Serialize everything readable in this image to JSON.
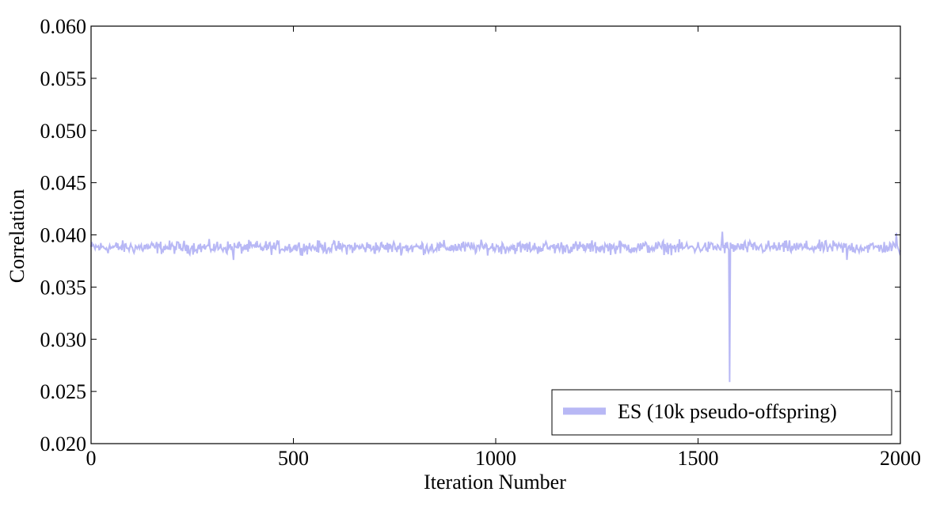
{
  "chart_data": {
    "type": "line",
    "title": "",
    "xlabel": "Iteration Number",
    "ylabel": "Correlation",
    "xlim": [
      0,
      2000
    ],
    "ylim": [
      0.02,
      0.06
    ],
    "x_ticks": [
      0,
      500,
      1000,
      1500,
      2000
    ],
    "x_tick_labels": [
      "0",
      "500",
      "1000",
      "1500",
      "2000"
    ],
    "y_ticks": [
      0.02,
      0.025,
      0.03,
      0.035,
      0.04,
      0.045,
      0.05,
      0.055,
      0.06
    ],
    "y_tick_labels": [
      "0.020",
      "0.025",
      "0.030",
      "0.035",
      "0.040",
      "0.045",
      "0.050",
      "0.055",
      "0.060"
    ],
    "grid": false,
    "legend_position": "bottom-right",
    "series": [
      {
        "name": "ES (10k pseudo-offspring)",
        "color": "#b8b8f5",
        "typical_mean": 0.0388,
        "typical_range": [
          0.0376,
          0.0403
        ],
        "notable_points": [
          {
            "x": 1578,
            "y": 0.0259
          },
          {
            "x": 1560,
            "y": 0.0403
          },
          {
            "x": 1990,
            "y": 0.0402
          },
          {
            "x": 352,
            "y": 0.0376
          },
          {
            "x": 1868,
            "y": 0.0376
          }
        ]
      }
    ]
  }
}
